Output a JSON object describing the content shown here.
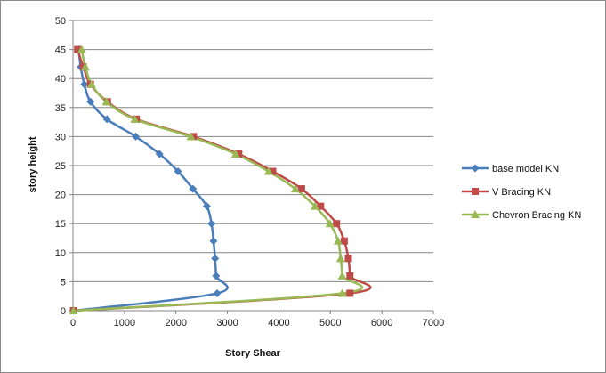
{
  "chart_data": {
    "type": "line",
    "xlabel": "Story Shear",
    "ylabel": "story height",
    "xlim": [
      0,
      7000
    ],
    "ylim": [
      0,
      50
    ],
    "xticks": [
      0,
      1000,
      2000,
      3000,
      4000,
      5000,
      6000,
      7000
    ],
    "yticks": [
      0,
      5,
      10,
      15,
      20,
      25,
      30,
      35,
      40,
      45,
      50
    ],
    "grid": "horizontal",
    "legend_position": "right",
    "series": [
      {
        "name": "base model KN",
        "color": "#4a7ebb",
        "marker": "diamond",
        "x": [
          10,
          2800,
          2780,
          2760,
          2730,
          2690,
          2600,
          2330,
          2040,
          1680,
          1220,
          660,
          340,
          220,
          150,
          110
        ],
        "y": [
          0,
          3,
          6,
          9,
          12,
          15,
          18,
          21,
          24,
          27,
          30,
          33,
          36,
          39,
          42,
          45
        ]
      },
      {
        "name": "V Bracing KN",
        "color": "#be4b48",
        "marker": "square",
        "x": [
          10,
          5380,
          5380,
          5350,
          5270,
          5120,
          4810,
          4440,
          3880,
          3220,
          2340,
          1230,
          670,
          340,
          200,
          90
        ],
        "y": [
          0,
          3,
          6,
          9,
          12,
          15,
          18,
          21,
          24,
          27,
          30,
          33,
          36,
          39,
          42,
          45
        ]
      },
      {
        "name": "Chevron Bracing KN",
        "color": "#98b954",
        "marker": "triangle",
        "x": [
          10,
          5230,
          5230,
          5200,
          5150,
          4990,
          4700,
          4320,
          3800,
          3160,
          2290,
          1200,
          650,
          360,
          240,
          170
        ],
        "y": [
          0,
          3,
          6,
          9,
          12,
          15,
          18,
          21,
          24,
          27,
          30,
          33,
          36,
          39,
          42,
          45
        ]
      }
    ]
  }
}
